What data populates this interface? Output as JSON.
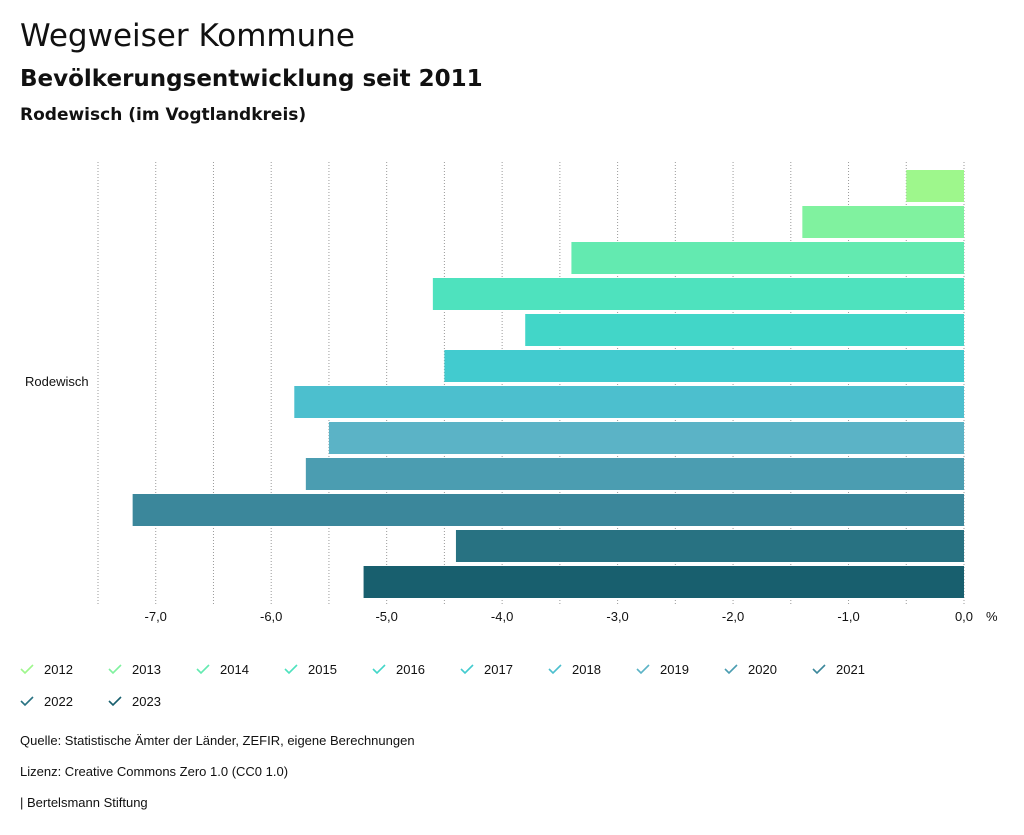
{
  "header": {
    "title": "Wegweiser Kommune",
    "subtitle": "Bevölkerungsentwicklung seit 2011",
    "region": "Rodewisch (im Vogtlandkreis)"
  },
  "chart_data": {
    "type": "bar",
    "orientation": "horizontal",
    "categories": [
      "Rodewisch"
    ],
    "series": [
      {
        "name": "2012",
        "values": [
          -0.5
        ],
        "color": "#9ef78c"
      },
      {
        "name": "2013",
        "values": [
          -1.4
        ],
        "color": "#80f29f"
      },
      {
        "name": "2014",
        "values": [
          -3.4
        ],
        "color": "#63eab0"
      },
      {
        "name": "2015",
        "values": [
          -4.6
        ],
        "color": "#4ee2be"
      },
      {
        "name": "2016",
        "values": [
          -3.8
        ],
        "color": "#42d6c8"
      },
      {
        "name": "2017",
        "values": [
          -4.5
        ],
        "color": "#42cbcf"
      },
      {
        "name": "2018",
        "values": [
          -5.8
        ],
        "color": "#4cbfce"
      },
      {
        "name": "2019",
        "values": [
          -5.5
        ],
        "color": "#5bb3c6"
      },
      {
        "name": "2020",
        "values": [
          -5.7
        ],
        "color": "#4b9db1"
      },
      {
        "name": "2021",
        "values": [
          -7.2
        ],
        "color": "#3b879b"
      },
      {
        "name": "2022",
        "values": [
          -4.4
        ],
        "color": "#287282"
      },
      {
        "name": "2023",
        "values": [
          -5.2
        ],
        "color": "#185f6e"
      }
    ],
    "xlim": [
      -7.5,
      0
    ],
    "ticks": [
      -7.0,
      -6.0,
      -5.0,
      -4.0,
      -3.0,
      -2.0,
      -1.0,
      0.0
    ],
    "tick_labels": [
      "-7,0",
      "-6,0",
      "-5,0",
      "-4,0",
      "-3,0",
      "-2,0",
      "-1,0",
      "0,0"
    ],
    "unit_label": "%",
    "category_label": "Rodewisch",
    "grid": "vertical-dotted"
  },
  "footer": {
    "source": "Quelle: Statistische Ämter der Länder, ZEFIR, eigene Berechnungen",
    "license": "Lizenz: Creative Commons Zero 1.0 (CC0 1.0)",
    "publisher": "| Bertelsmann Stiftung"
  }
}
